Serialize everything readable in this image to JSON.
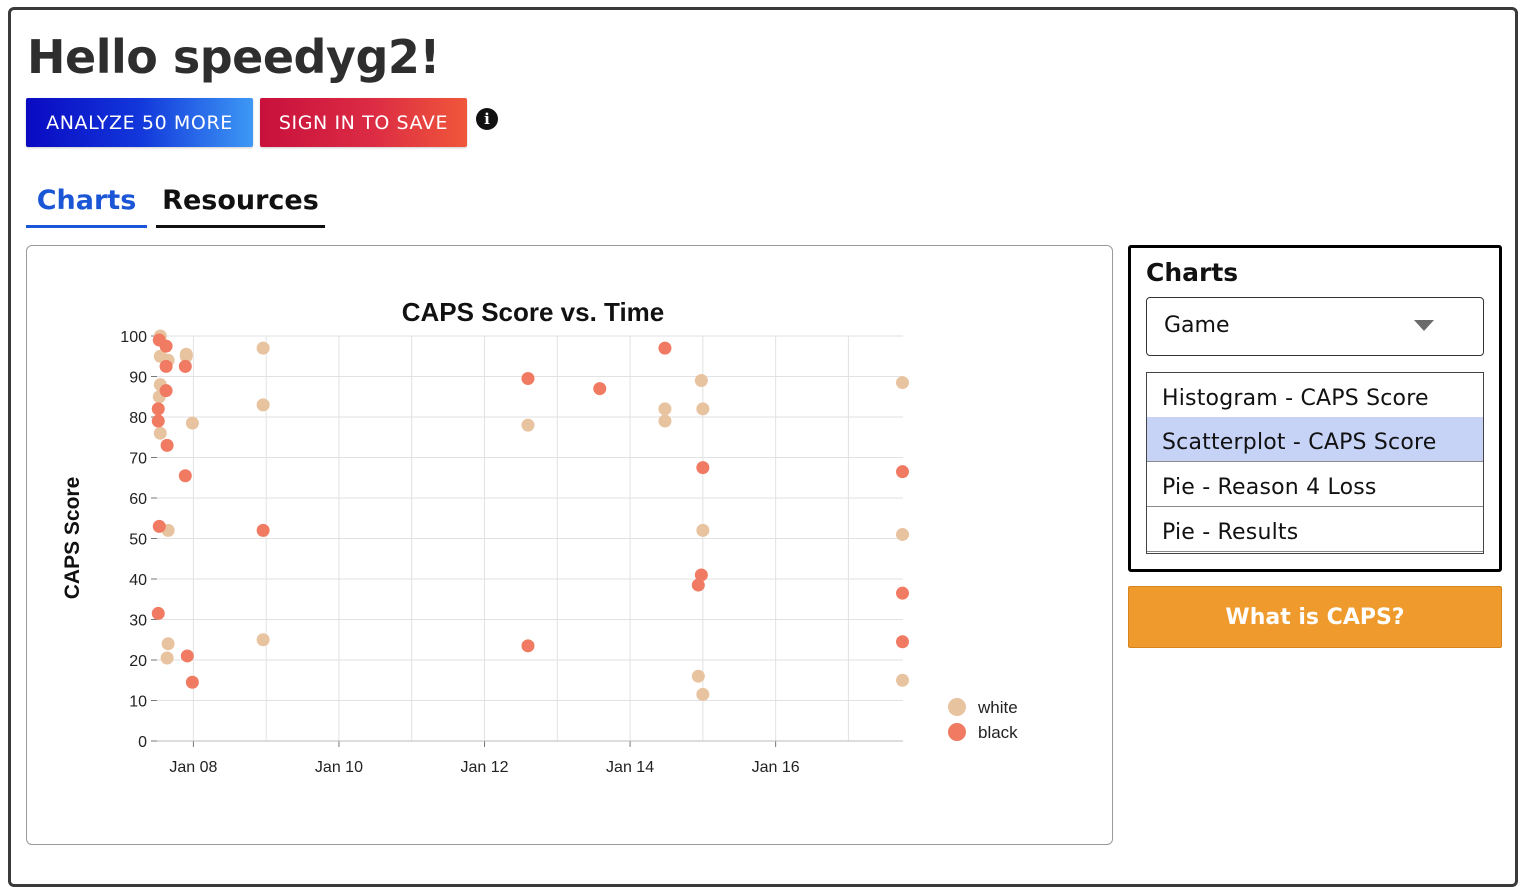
{
  "greeting": "Hello speedyg2!",
  "buttons": {
    "analyze": "ANALYZE 50 MORE",
    "sign_in": "SIGN IN TO SAVE",
    "what_is_caps": "What is CAPS?"
  },
  "info_icon": {
    "icon": "info-icon",
    "glyph": "i"
  },
  "tabs": [
    {
      "label": "Charts",
      "active": true
    },
    {
      "label": "Resources",
      "active": false
    }
  ],
  "side_panel": {
    "title": "Charts",
    "select_value": "Game",
    "options": [
      {
        "label": "Histogram - CAPS Score",
        "selected": false
      },
      {
        "label": "Scatterplot - CAPS Score",
        "selected": true
      },
      {
        "label": "Pie - Reason 4 Loss",
        "selected": false
      },
      {
        "label": "Pie - Results",
        "selected": false
      }
    ]
  },
  "colors": {
    "accent_blue": "#1a56d6",
    "white_series": "#e8c3a0",
    "black_series": "#f07a62",
    "caps_button": "#ef9a2c"
  },
  "chart_data": {
    "type": "scatter",
    "title": "CAPS Score vs. Time",
    "xlabel": "",
    "ylabel": "CAPS Score",
    "xlim": [
      "2024-01-07 12:00",
      "2024-01-17 18:00"
    ],
    "ylim": [
      0,
      100
    ],
    "x_ticks": [
      {
        "value": "2024-01-08",
        "label": "Jan 08"
      },
      {
        "value": "2024-01-10",
        "label": "Jan 10"
      },
      {
        "value": "2024-01-12",
        "label": "Jan 12"
      },
      {
        "value": "2024-01-14",
        "label": "Jan 14"
      },
      {
        "value": "2024-01-16",
        "label": "Jan 16"
      }
    ],
    "y_ticks": [
      0,
      10,
      20,
      30,
      40,
      50,
      60,
      70,
      80,
      90,
      100
    ],
    "grid": true,
    "legend_position": "bottom-right",
    "series": [
      {
        "name": "white",
        "color": "#e8c3a0",
        "points": [
          [
            "2024-01-07 13:05",
            100
          ],
          [
            "2024-01-07 13:05",
            95
          ],
          [
            "2024-01-07 13:05",
            88
          ],
          [
            "2024-01-07 12:45",
            85
          ],
          [
            "2024-01-07 13:05",
            76
          ],
          [
            "2024-01-07 15:40",
            94
          ],
          [
            "2024-01-07 15:40",
            52
          ],
          [
            "2024-01-07 15:40",
            24
          ],
          [
            "2024-01-07 15:20",
            20.5
          ],
          [
            "2024-01-07 21:40",
            95.5
          ],
          [
            "2024-01-07 21:40",
            95
          ],
          [
            "2024-01-07 23:40",
            78.5
          ],
          [
            "2024-01-08 23:00",
            97
          ],
          [
            "2024-01-08 23:00",
            83
          ],
          [
            "2024-01-08 23:00",
            25
          ],
          [
            "2024-01-12 14:20",
            78
          ],
          [
            "2024-01-14 11:30",
            82
          ],
          [
            "2024-01-14 11:30",
            79
          ],
          [
            "2024-01-14 22:30",
            16
          ],
          [
            "2024-01-14 23:30",
            89
          ],
          [
            "2024-01-15 00:00",
            82
          ],
          [
            "2024-01-15 00:00",
            52
          ],
          [
            "2024-01-15 00:00",
            11.5
          ],
          [
            "2024-01-17 17:50",
            88.5
          ],
          [
            "2024-01-17 17:50",
            51
          ],
          [
            "2024-01-17 17:50",
            15
          ]
        ]
      },
      {
        "name": "black",
        "color": "#f07a62",
        "points": [
          [
            "2024-01-07 12:45",
            99
          ],
          [
            "2024-01-07 12:25",
            82
          ],
          [
            "2024-01-07 12:25",
            79
          ],
          [
            "2024-01-07 12:45",
            53
          ],
          [
            "2024-01-07 12:25",
            31.5
          ],
          [
            "2024-01-07 15:00",
            97.5
          ],
          [
            "2024-01-07 15:00",
            92.5
          ],
          [
            "2024-01-07 15:00",
            86.5
          ],
          [
            "2024-01-07 15:20",
            73
          ],
          [
            "2024-01-07 21:20",
            92.5
          ],
          [
            "2024-01-07 21:20",
            65.5
          ],
          [
            "2024-01-07 22:00",
            21
          ],
          [
            "2024-01-07 23:40",
            14.5
          ],
          [
            "2024-01-08 23:00",
            52
          ],
          [
            "2024-01-12 14:20",
            89.5
          ],
          [
            "2024-01-12 14:20",
            23.5
          ],
          [
            "2024-01-13 14:00",
            87
          ],
          [
            "2024-01-14 11:30",
            97
          ],
          [
            "2024-01-14 22:30",
            38.5
          ],
          [
            "2024-01-15 00:00",
            67.5
          ],
          [
            "2024-01-14 23:30",
            41
          ],
          [
            "2024-01-17 17:50",
            66.5
          ],
          [
            "2024-01-17 17:50",
            36.5
          ],
          [
            "2024-01-17 17:50",
            24.5
          ]
        ]
      }
    ]
  }
}
